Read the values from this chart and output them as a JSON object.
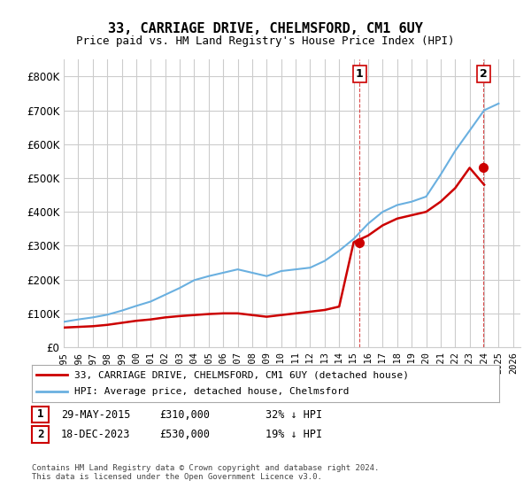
{
  "title": "33, CARRIAGE DRIVE, CHELMSFORD, CM1 6UY",
  "subtitle": "Price paid vs. HM Land Registry's House Price Index (HPI)",
  "legend_line1": "33, CARRIAGE DRIVE, CHELMSFORD, CM1 6UY (detached house)",
  "legend_line2": "HPI: Average price, detached house, Chelmsford",
  "annotation1_label": "1",
  "annotation1_date": "29-MAY-2015",
  "annotation1_price": 310000,
  "annotation1_pct": "32% ↓ HPI",
  "annotation2_label": "2",
  "annotation2_date": "18-DEC-2023",
  "annotation2_price": 530000,
  "annotation2_pct": "19% ↓ HPI",
  "footer": "Contains HM Land Registry data © Crown copyright and database right 2024.\nThis data is licensed under the Open Government Licence v3.0.",
  "hpi_color": "#6ab0e0",
  "price_color": "#cc0000",
  "annotation_color": "#cc0000",
  "vline_color": "#cc0000",
  "background_color": "#ffffff",
  "grid_color": "#cccccc",
  "ylim": [
    0,
    850000
  ],
  "yticks": [
    0,
    100000,
    200000,
    300000,
    400000,
    500000,
    600000,
    700000,
    800000
  ],
  "hpi_years": [
    1995,
    1996,
    1997,
    1998,
    1999,
    2000,
    2001,
    2002,
    2003,
    2004,
    2005,
    2006,
    2007,
    2008,
    2009,
    2010,
    2011,
    2012,
    2013,
    2014,
    2015,
    2016,
    2017,
    2018,
    2019,
    2020,
    2021,
    2022,
    2023,
    2024,
    2025
  ],
  "hpi_values": [
    75000,
    82000,
    88000,
    96000,
    108000,
    122000,
    135000,
    155000,
    175000,
    198000,
    210000,
    220000,
    230000,
    220000,
    210000,
    225000,
    230000,
    235000,
    255000,
    285000,
    320000,
    365000,
    400000,
    420000,
    430000,
    445000,
    510000,
    580000,
    640000,
    700000,
    720000
  ],
  "price_years": [
    1995,
    1996,
    1997,
    1998,
    1999,
    2000,
    2001,
    2002,
    2003,
    2004,
    2005,
    2006,
    2007,
    2008,
    2009,
    2010,
    2011,
    2012,
    2013,
    2014,
    2015,
    2016,
    2017,
    2018,
    2019,
    2020,
    2021,
    2022,
    2023,
    2024
  ],
  "price_values": [
    58000,
    60000,
    62000,
    66000,
    72000,
    78000,
    82000,
    88000,
    92000,
    95000,
    98000,
    100000,
    100000,
    95000,
    90000,
    95000,
    100000,
    105000,
    110000,
    120000,
    310000,
    330000,
    360000,
    380000,
    390000,
    400000,
    430000,
    470000,
    530000,
    480000
  ],
  "sale1_x": 2015.41,
  "sale1_y": 310000,
  "sale2_x": 2023.96,
  "sale2_y": 530000,
  "xtick_years": [
    1995,
    1996,
    1997,
    1998,
    1999,
    2000,
    2001,
    2002,
    2003,
    2004,
    2005,
    2006,
    2007,
    2008,
    2009,
    2010,
    2011,
    2012,
    2013,
    2014,
    2015,
    2016,
    2017,
    2018,
    2019,
    2020,
    2021,
    2022,
    2023,
    2024,
    2025,
    2026
  ]
}
